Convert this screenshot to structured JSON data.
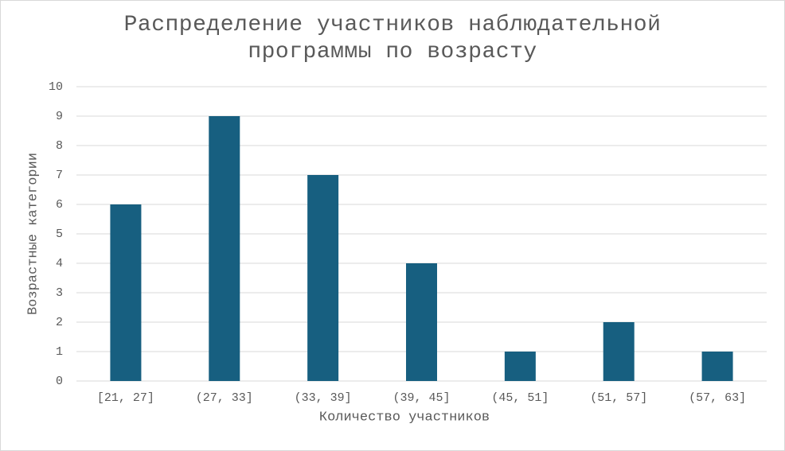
{
  "chart_data": {
    "type": "bar",
    "title": "Распределение участников наблюдательной программы по возрасту",
    "x_label": "Количество участников",
    "y_label": "Возрастные категории",
    "categories": [
      "[21, 27]",
      "(27, 33]",
      "(33, 39]",
      "(39, 45]",
      "(45, 51]",
      "(51, 57]",
      "(57, 63]"
    ],
    "values": [
      6,
      9,
      7,
      4,
      1,
      2,
      1
    ],
    "color": "#175f80",
    "ylim": [
      0,
      10
    ],
    "yticks": [
      0,
      1,
      2,
      3,
      4,
      5,
      6,
      7,
      8,
      9,
      10
    ],
    "grid": true
  }
}
